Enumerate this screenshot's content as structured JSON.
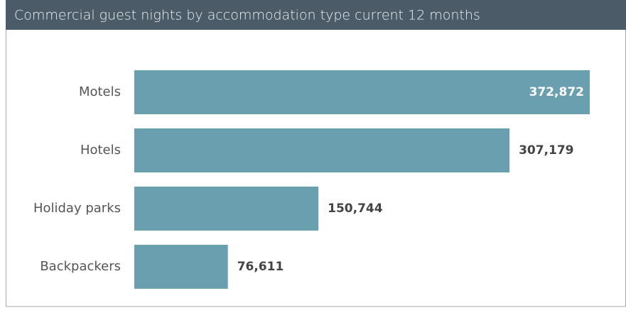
{
  "chart_data": {
    "type": "bar",
    "orientation": "horizontal",
    "title": "Commercial guest nights by accommodation type current 12 months",
    "categories": [
      "Motels",
      "Hotels",
      "Holiday parks",
      "Backpackers"
    ],
    "values": [
      372872,
      307179,
      150744,
      76611
    ],
    "value_labels": [
      "372,872",
      "307,179",
      "150,744",
      "76,611"
    ],
    "color": "#6a9fb0"
  }
}
